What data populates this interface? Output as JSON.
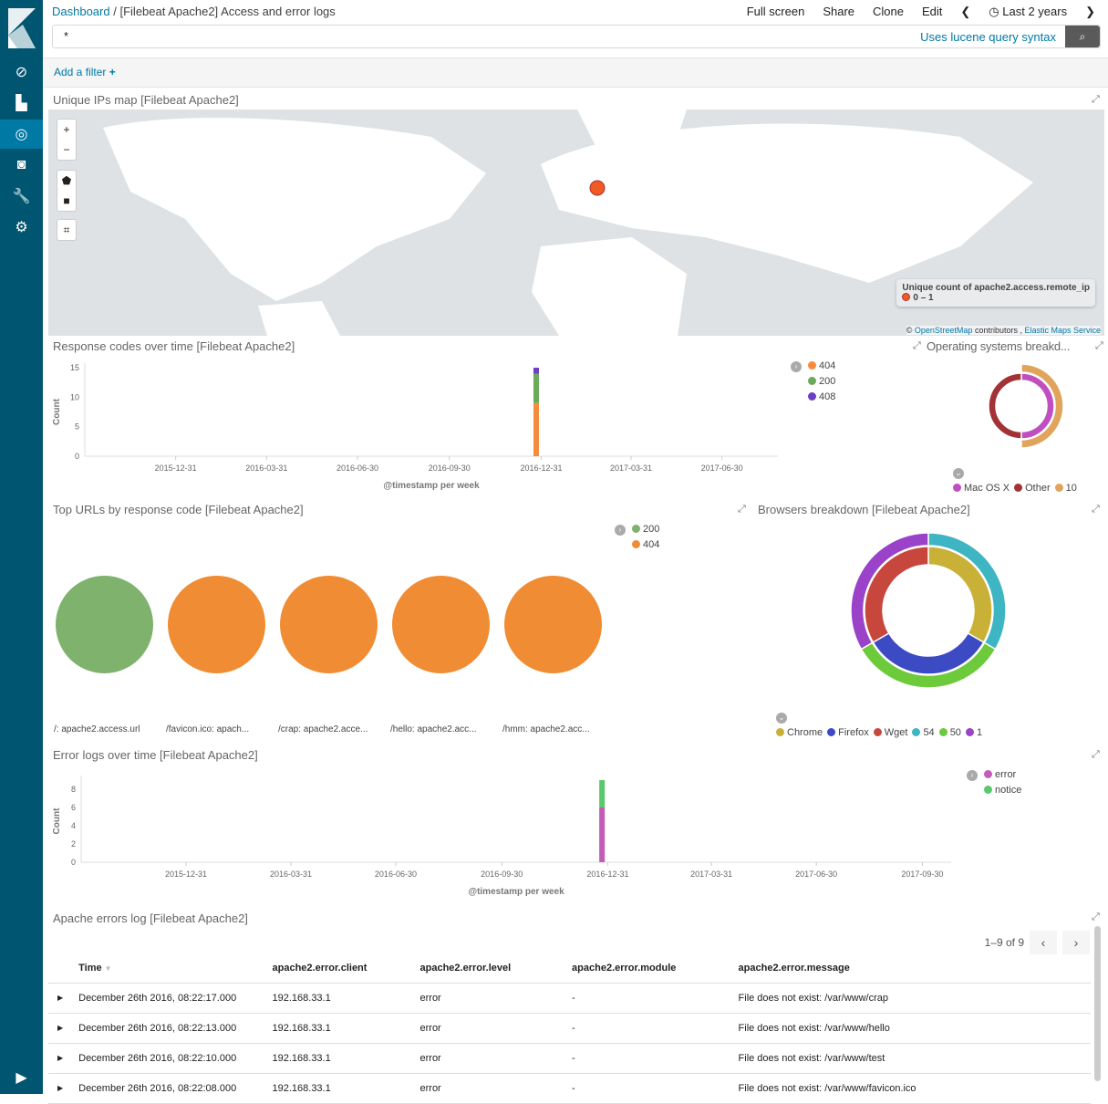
{
  "sidebar": {
    "items": [
      {
        "name": "discover",
        "icon": "compass-icon",
        "glyph": "⊘"
      },
      {
        "name": "visualize",
        "icon": "bar-chart-icon",
        "glyph": "▙"
      },
      {
        "name": "dashboard",
        "icon": "dashboard-icon",
        "glyph": "◎",
        "active": true
      },
      {
        "name": "timelion",
        "icon": "mask-icon",
        "glyph": "◙"
      },
      {
        "name": "dev-tools",
        "icon": "wrench-icon",
        "glyph": "🔧"
      },
      {
        "name": "management",
        "icon": "gear-icon",
        "glyph": "⚙"
      }
    ],
    "collapse_icon": "play-circle-icon"
  },
  "header": {
    "breadcrumb_root": "Dashboard",
    "separator": "/",
    "title": "[Filebeat Apache2] Access and error logs",
    "menu": [
      "Full screen",
      "Share",
      "Clone",
      "Edit"
    ],
    "time_range": "Last 2 years"
  },
  "query": {
    "value": "*",
    "syntax_link": "Uses lucene query syntax"
  },
  "filter": {
    "add_label": "Add a filter",
    "add_icon": "+"
  },
  "map_panel": {
    "title": "Unique IPs map [Filebeat Apache2]",
    "legend_title": "Unique count of apache2.access.remote_ip",
    "legend_range": "0 – 1",
    "marker_color": "#f15a24",
    "attribution": {
      "prefix": "©",
      "osm": "OpenStreetMap",
      "mid": " contributors , ",
      "ems": "Elastic Maps Service"
    },
    "controls": [
      "+",
      "−",
      "⬟",
      "■",
      "⌗"
    ]
  },
  "response_panel": {
    "title": "Response codes over time [Filebeat Apache2]"
  },
  "os_panel": {
    "title": "Operating systems breakd..."
  },
  "urls_panel": {
    "title": "Top URLs by response code [Filebeat Apache2]"
  },
  "browsers_panel": {
    "title": "Browsers breakdown [Filebeat Apache2]"
  },
  "errors_panel": {
    "title": "Error logs over time [Filebeat Apache2]"
  },
  "table_panel": {
    "title": "Apache errors log [Filebeat Apache2]",
    "pager": "1–9 of 9",
    "columns": [
      "Time",
      "apache2.error.client",
      "apache2.error.level",
      "apache2.error.module",
      "apache2.error.message"
    ],
    "rows": [
      [
        "December 26th 2016, 08:22:17.000",
        "192.168.33.1",
        "error",
        "-",
        "File does not exist: /var/www/crap"
      ],
      [
        "December 26th 2016, 08:22:13.000",
        "192.168.33.1",
        "error",
        "-",
        "File does not exist: /var/www/hello"
      ],
      [
        "December 26th 2016, 08:22:10.000",
        "192.168.33.1",
        "error",
        "-",
        "File does not exist: /var/www/test"
      ],
      [
        "December 26th 2016, 08:22:08.000",
        "192.168.33.1",
        "error",
        "-",
        "File does not exist: /var/www/favicon.ico"
      ]
    ]
  },
  "chart_data": [
    {
      "id": "response",
      "type": "bar",
      "stacked": true,
      "xlabel": "@timestamp per week",
      "ylabel": "Count",
      "ylim": [
        0,
        15
      ],
      "yticks": [
        0,
        5,
        10,
        15
      ],
      "xticks": [
        "2015-12-31",
        "2016-03-31",
        "2016-06-30",
        "2016-09-30",
        "2016-12-31",
        "2017-03-31",
        "2017-06-30"
      ],
      "bar_x": "2016-12-26",
      "series": [
        {
          "name": "404",
          "color": "#f58c3b",
          "value": 9
        },
        {
          "name": "200",
          "color": "#6aaa58",
          "value": 5
        },
        {
          "name": "408",
          "color": "#6f3ec6",
          "value": 1
        }
      ],
      "legend": "top-right"
    },
    {
      "id": "errors",
      "type": "bar",
      "stacked": true,
      "xlabel": "@timestamp per week",
      "ylabel": "Count",
      "ylim": [
        0,
        9
      ],
      "yticks": [
        0,
        2,
        4,
        6,
        8
      ],
      "xticks": [
        "2015-12-31",
        "2016-03-31",
        "2016-06-30",
        "2016-09-30",
        "2016-12-31",
        "2017-03-31",
        "2017-06-30",
        "2017-09-30"
      ],
      "bar_x": "2016-12-26",
      "series": [
        {
          "name": "error",
          "color": "#c35bb9",
          "value": 6
        },
        {
          "name": "notice",
          "color": "#59c96b",
          "value": 3
        }
      ],
      "legend": "top-right"
    },
    {
      "id": "os",
      "type": "pie",
      "donut": true,
      "inner": [
        {
          "name": "Mac OS X",
          "color": "#c14ec0",
          "value": 1
        },
        {
          "name": "Other",
          "color": "#a23236",
          "value": 1
        }
      ],
      "outer": [
        {
          "name": "10",
          "color": "#e1a45c",
          "value": 1,
          "parent": "Mac OS X"
        }
      ],
      "legend": "bottom"
    },
    {
      "id": "browsers",
      "type": "pie",
      "donut": true,
      "inner": [
        {
          "name": "Chrome",
          "color": "#c9b036",
          "value": 1
        },
        {
          "name": "Firefox",
          "color": "#3c4ac4",
          "value": 1
        },
        {
          "name": "Wget",
          "color": "#c8473d",
          "value": 1
        }
      ],
      "outer": [
        {
          "name": "54",
          "color": "#3db5c2",
          "value": 1,
          "parent": "Chrome"
        },
        {
          "name": "50",
          "color": "#6dca3b",
          "value": 1,
          "parent": "Firefox"
        },
        {
          "name": "1",
          "color": "#9a42c8",
          "value": 1,
          "parent": "Wget"
        }
      ],
      "legend": "bottom"
    },
    {
      "id": "urls",
      "type": "pie",
      "legend": "top-right",
      "legend_entries": [
        {
          "name": "200",
          "color": "#7eb26d"
        },
        {
          "name": "404",
          "color": "#f08c33"
        }
      ],
      "pies": [
        {
          "label": "/: apache2.access.url",
          "color": "#7eb26d"
        },
        {
          "label": "/favicon.ico: apach...",
          "color": "#f08c33"
        },
        {
          "label": "/crap: apache2.acce...",
          "color": "#f08c33"
        },
        {
          "label": "/hello: apache2.acc...",
          "color": "#f08c33"
        },
        {
          "label": "/hmm: apache2.acc...",
          "color": "#f08c33"
        }
      ]
    }
  ]
}
